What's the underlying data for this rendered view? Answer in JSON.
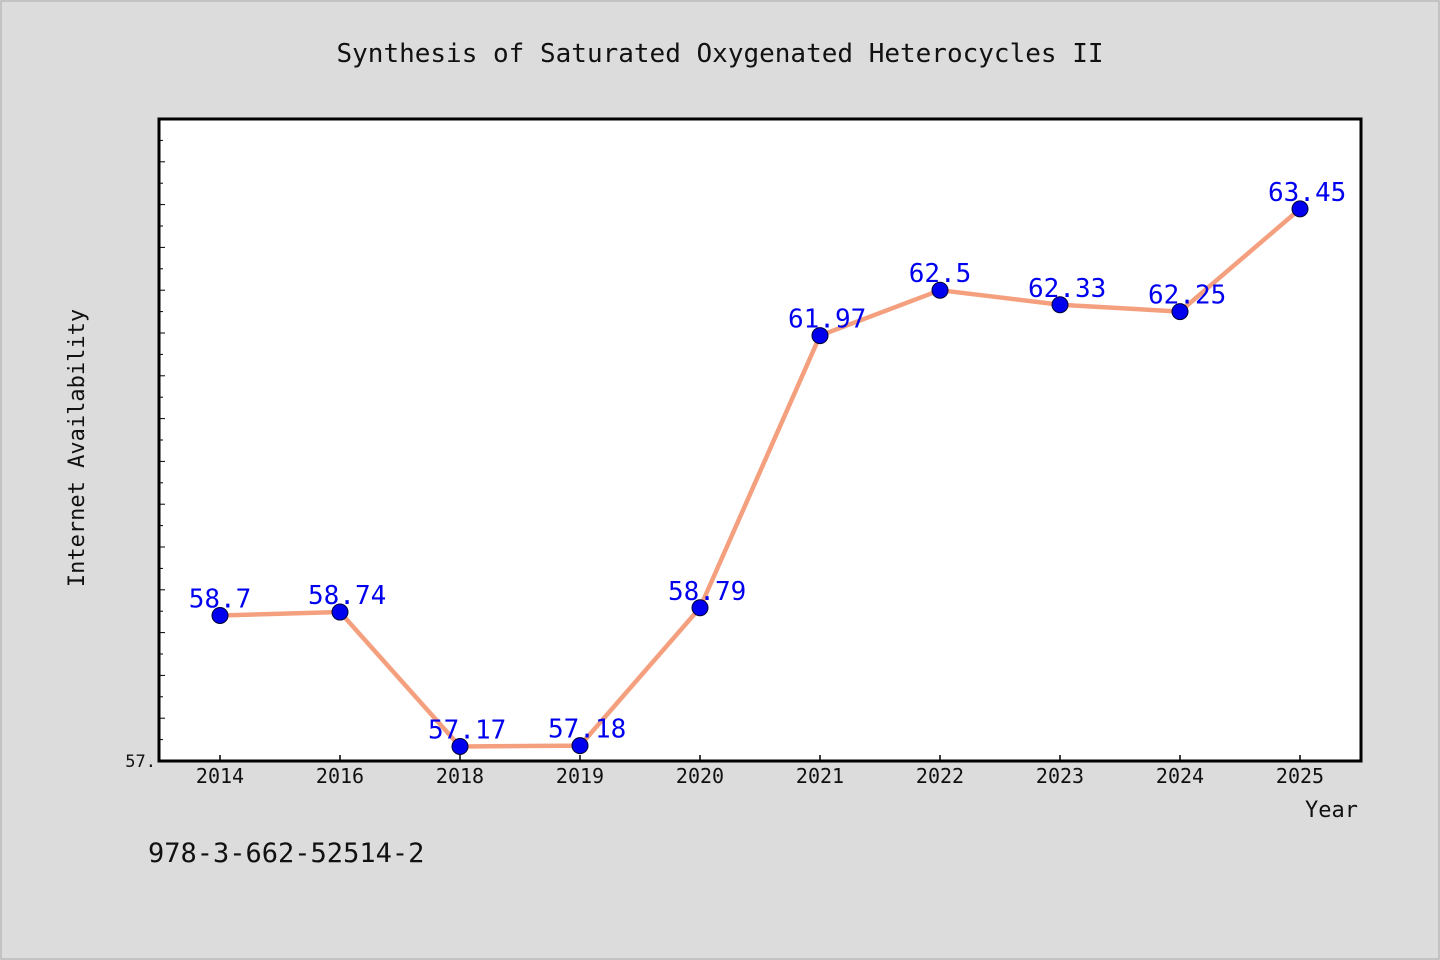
{
  "chart_data": {
    "type": "line",
    "title": "Synthesis of Saturated Oxygenated Heterocycles II",
    "xlabel": "Year",
    "ylabel": "Internet Availability",
    "footnote": "978-3-662-52514-2",
    "categories": [
      "2014",
      "2016",
      "2018",
      "2019",
      "2020",
      "2021",
      "2022",
      "2023",
      "2024",
      "2025"
    ],
    "series": [
      {
        "values": [
          58.7,
          58.74,
          57.17,
          57.18,
          58.79,
          61.97,
          62.5,
          62.33,
          62.25,
          63.45
        ],
        "labels": [
          "58.7",
          "58.74",
          "57.17",
          "57.18",
          "58.79",
          "61.97",
          "62.5",
          "62.33",
          "62.25",
          "63.45"
        ]
      }
    ],
    "ylim": [
      57.0,
      64.5
    ],
    "y_tick_labels": [
      "57."
    ],
    "grid": false,
    "colors": {
      "line": "#f4a07e",
      "marker": "#0000ee",
      "label": "#0000ee",
      "background": "#dcdcdc",
      "plot_background": "#ffffff"
    }
  }
}
